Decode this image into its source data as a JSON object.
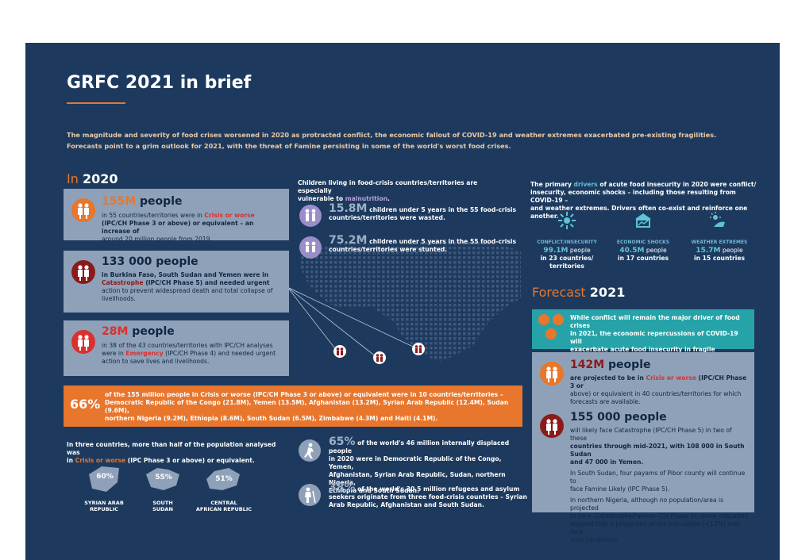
{
  "title": "GRFC 2021 in brief",
  "intro_line1": "The magnitude and severity of food crises worsened in 2020 as protracted conflict, the economic fallout of COVID-19 and weather extremes exacerbated pre-existing fragilities.",
  "intro_line2": "Forecasts point to a grim outlook for 2021, with the threat of Famine persisting in some of the world's worst food crises.",
  "in2020": {
    "prefix": "In",
    "year": "2020"
  },
  "card1": {
    "num": "155M",
    "unit": "people",
    "a": "in 55 countries/territories were in ",
    "b": "Crisis or worse",
    "c": "(IPC/CH Phase 3 or above) or equivalent – an increase of",
    "d": "around 20 million people from 2019."
  },
  "card2": {
    "title": "133 000 people",
    "a": "in Burkina Faso, South Sudan and Yemen were in",
    "b": "Catastrophe",
    "c": " (IPC/CH Phase 5) and needed urgent",
    "d": "action to prevent widespread death and total collapse of",
    "e": "livelihoods."
  },
  "card3": {
    "num": "28M",
    "unit": "people",
    "a": "in 38 of the 43 countries/territories with IPC/CH analyses",
    "b": "were in ",
    "c": "Emergency",
    "d": " (IPC/CH Phase 4) and needed urgent",
    "e": "action to save lives and livelihoods."
  },
  "children": {
    "head1": "Children living in food-crisis countries/territories are especially",
    "head2": "vulnerable to ",
    "head_kw": "malnutrition",
    "head_end": ".",
    "wasted_num": "15.8M",
    "wasted_a": " children under 5 years in the 55 food-crisis",
    "wasted_b": "countries/territories were ",
    "wasted_kw": "wasted",
    "wasted_end": ".",
    "stunted_num": "75.2M",
    "stunted_a": " children under 5 years in the 55 food-crisis",
    "stunted_b": "countries/territories were ",
    "stunted_kw": "stunted",
    "stunted_end": "."
  },
  "drivers": {
    "line1a": "The primary ",
    "line1kw": "drivers",
    "line1b": " of acute food insecurity in 2020 were conflict/",
    "line2": "insecurity, economic shocks – including those resulting from COVID-19 –",
    "line3": "and weather extremes. Drivers often co-exist and reinforce one another.",
    "items": [
      {
        "label": "CONFLICT/INSECURITY",
        "num": "99.1M",
        "unit": " people",
        "l2": "in 23 countries/",
        "l3": "territories"
      },
      {
        "label": "ECONOMIC SHOCKS",
        "num": "40.5M",
        "unit": " people",
        "l2": "in 17 countries",
        "l3": ""
      },
      {
        "label": "WEATHER EXTREMES",
        "num": "15.7M",
        "unit": " people",
        "l2": "in 15 countries",
        "l3": ""
      }
    ]
  },
  "forecast": {
    "prefix": "Forecast",
    "year": "2021",
    "teal1": "While conflict will remain the major driver of food crises",
    "teal2": "in 2021, the economic repercussions of COVID-19 will",
    "teal3": "exacerbate acute food insecurity in fragile economies.",
    "f1_num": "142M",
    "f1_unit": "people",
    "f1_a": "are projected to be in ",
    "f1_kw": "Crisis or worse",
    "f1_b": " (IPC/CH Phase 3 or",
    "f1_c": "above) or equivalent in 40 countries/territories for which",
    "f1_d": "forecasts are available.",
    "f2_title": "155 000 people",
    "f2_a": "will likely face Catastrophe (IPC/CH Phase 5) in two of these",
    "f2_b": "countries through mid-2021, with 108 000 in South Sudan",
    "f2_c": "and 47 000 in Yemen.",
    "f2_d": "In South Sudan, four payams of Pibor county will continue to",
    "f2_e": "face Famine Likely (IPC Phase 5).",
    "f2_f": "In northern Nigeria, although no population/area is projected",
    "f2_g": "to be in Catastrophe/Famine (CH Phase 5), some indicators",
    "f2_h": "suggest that a proportion of the population (<10%) may face",
    "f2_i": "such conditions."
  },
  "banner": {
    "pct": "66%",
    "l1": "of the 155 million people in Crisis or worse (IPC/CH Phase 3 or above) or equivalent were in 10 countries/territories –",
    "l2": "Democratic Republic of the Congo (21.8M), Yemen (13.5M), Afghanistan (13.2M), Syrian Arab Republic (12.4M), Sudan (9.6M),",
    "l3": "northern Nigeria (9.2M), Ethiopia (8.6M), South Sudan (6.5M), Zimbabwe (4.3M) and Haiti (4.1M)."
  },
  "three": {
    "l1": "In three countries, more than half of the population analysed was",
    "l2a": "in ",
    "l2kw": "Crisis or worse",
    "l2b": " (IPC Phase 3 or above) or equivalent.",
    "countries": [
      {
        "pct": "60%",
        "n1": "SYRIAN ARAB",
        "n2": "REPUBLIC"
      },
      {
        "pct": "55%",
        "n1": "SOUTH",
        "n2": "SUDAN"
      },
      {
        "pct": "51%",
        "n1": "CENTRAL",
        "n2": "AFRICAN REPUBLIC"
      }
    ]
  },
  "displaced": {
    "pct": "65%",
    "a": " of the world's 46 million internally displaced people",
    "b": "in 2020 were in Democratic Republic of the Congo, Yemen,",
    "c": "Afghanistan, Syrian Arab Republic, Sudan, northern Nigeria,",
    "d": "Ethiopia and South Sudan."
  },
  "refugees": {
    "pct": "38%",
    "a": " of the world's 30.5 million refugees and asylum",
    "b": "seekers originate from three food-crisis countries – Syrian",
    "c": "Arab Republic, Afghanistan and South Sudan."
  },
  "colors": {
    "navy": "#1d3a5e",
    "orange": "#e8762c",
    "teal": "#26a3a8",
    "card": "#8fa1b8",
    "dark_red": "#8b1a1a"
  }
}
